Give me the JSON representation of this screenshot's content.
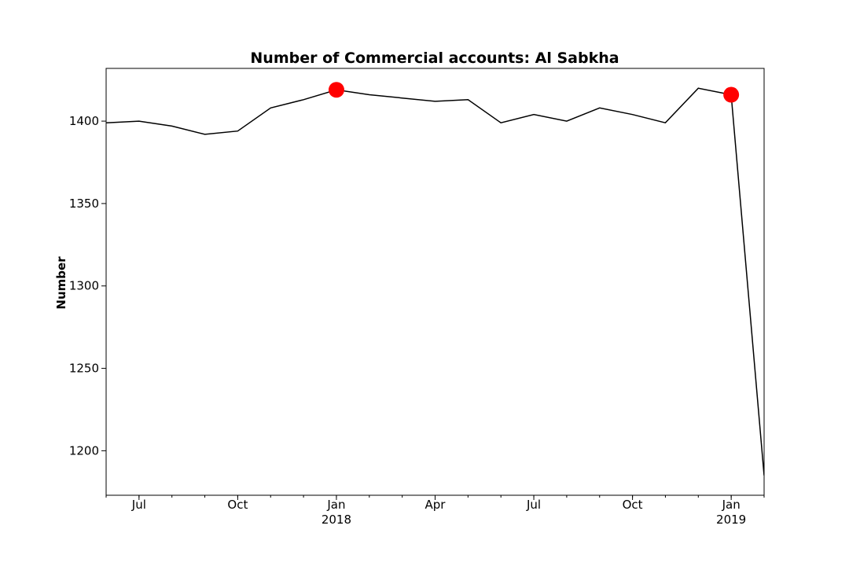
{
  "chart_data": {
    "type": "line",
    "title": "Number of Commercial accounts: Al Sabkha",
    "xlabel": "",
    "ylabel": "Number",
    "x": [
      "2017-06",
      "2017-07",
      "2017-08",
      "2017-09",
      "2017-10",
      "2017-11",
      "2017-12",
      "2018-01",
      "2018-02",
      "2018-03",
      "2018-04",
      "2018-05",
      "2018-06",
      "2018-07",
      "2018-08",
      "2018-09",
      "2018-10",
      "2018-11",
      "2018-12",
      "2019-01",
      "2019-02"
    ],
    "series": [
      {
        "values": [
          1399,
          1400,
          1397,
          1392,
          1394,
          1408,
          1413,
          1419,
          1416,
          1414,
          1412,
          1413,
          1399,
          1404,
          1400,
          1408,
          1404,
          1399,
          1420,
          1416,
          1185
        ],
        "color": "#000000"
      }
    ],
    "highlighted_points": [
      {
        "x": "2018-01",
        "y": 1419
      },
      {
        "x": "2019-01",
        "y": 1416
      }
    ],
    "highlight_color": "#ff0000",
    "ylim": [
      1173,
      1432
    ],
    "xlim": [
      "2017-06",
      "2019-02"
    ],
    "y_ticks": [
      1200,
      1250,
      1300,
      1350,
      1400
    ],
    "x_major_ticks": [
      {
        "x": "2017-07",
        "label": "Jul",
        "year": ""
      },
      {
        "x": "2017-10",
        "label": "Oct",
        "year": ""
      },
      {
        "x": "2018-01",
        "label": "Jan",
        "year": "2018"
      },
      {
        "x": "2018-04",
        "label": "Apr",
        "year": ""
      },
      {
        "x": "2018-07",
        "label": "Jul",
        "year": ""
      },
      {
        "x": "2018-10",
        "label": "Oct",
        "year": ""
      },
      {
        "x": "2019-01",
        "label": "Jan",
        "year": "2019"
      }
    ],
    "grid": false,
    "legend": "none"
  }
}
